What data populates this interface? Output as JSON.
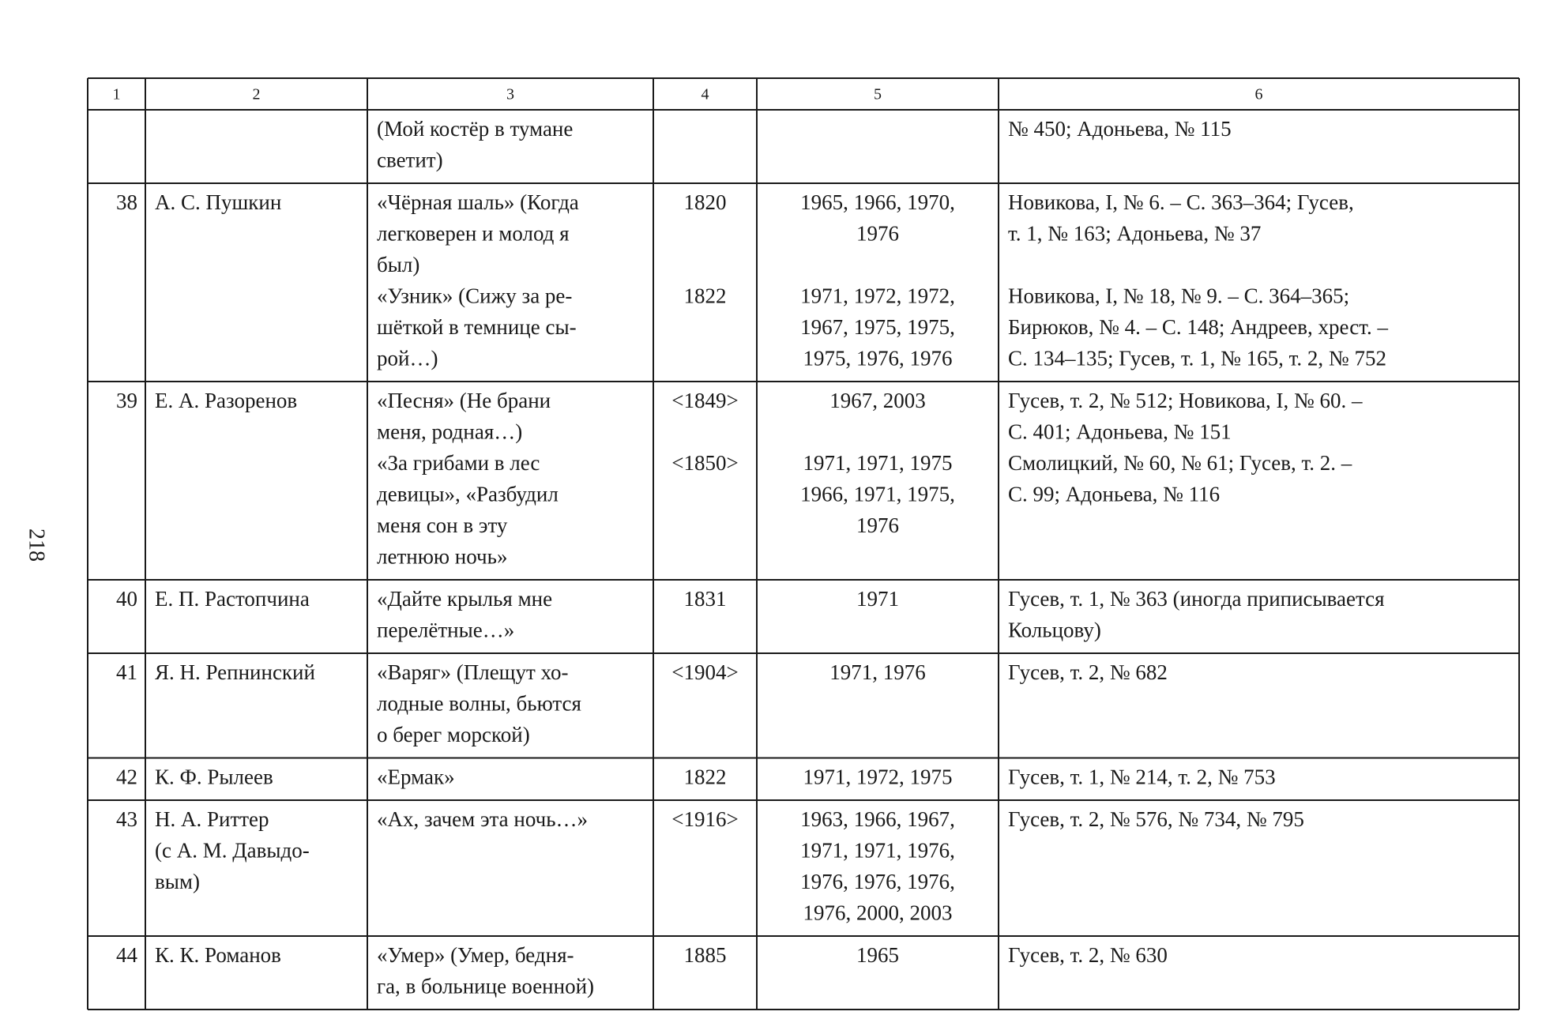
{
  "page_number": "218",
  "table": {
    "header": [
      "1",
      "2",
      "3",
      "4",
      "5",
      "6"
    ],
    "rows": [
      {
        "entries": [
          {
            "work": [
              "(Мой костёр в тумане",
              "светит)"
            ],
            "sources": [
              "№  450; Адоньева, № 115"
            ]
          }
        ]
      },
      {
        "num": "38",
        "author": [
          "А. С. Пушкин"
        ],
        "entries": [
          {
            "work": [
              "«Чёрная шаль» (Когда",
              "легковерен и молод я",
              "был)"
            ],
            "year": "1820",
            "editions": [
              "1965, 1966, 1970,",
              "1976"
            ],
            "sources": [
              "Новикова, I, № 6. – С. 363–364; Гусев,",
              "т.  1, № 163; Адоньева, № 37"
            ]
          },
          {
            "work": [
              "«Узник» (Сижу за ре-",
              "шёткой в темнице сы-",
              "рой…)"
            ],
            "year": "1822",
            "editions": [
              "1971, 1972, 1972,",
              "1967, 1975, 1975,",
              "1975, 1976, 1976"
            ],
            "sources": [
              "Новикова, I, № 18, № 9. – С. 364–365;",
              "Бирюков, № 4. – С. 148; Андреев, хрест. –",
              "С. 134–135; Гусев, т. 1, № 165, т. 2, № 752"
            ]
          }
        ]
      },
      {
        "num": "39",
        "author": [
          "Е. А. Разоренов"
        ],
        "entries": [
          {
            "work": [
              "«Песня» (Не брани",
              "меня, родная…)"
            ],
            "year": "<1849>",
            "editions": [
              "1967, 2003"
            ],
            "sources": [
              "Гусев, т. 2, № 512; Новикова, I, № 60. –",
              "С.  401; Адоньева, № 151"
            ]
          },
          {
            "work": [
              "«За грибами в лес",
              "девицы», «Разбудил",
              "меня сон в эту",
              "летнюю ночь»"
            ],
            "year": "<1850>",
            "editions": [
              "1971, 1971, 1975",
              "1966, 1971, 1975,",
              "1976"
            ],
            "sources": [
              "Смолицкий, № 60, № 61; Гусев, т. 2. –",
              "С.  99; Адоньева, № 116"
            ]
          }
        ]
      },
      {
        "num": "40",
        "author": [
          "Е. П. Растопчина"
        ],
        "entries": [
          {
            "work": [
              "«Дайте крылья мне",
              "перелётные…»"
            ],
            "year": "1831",
            "editions": [
              "1971"
            ],
            "sources": [
              "Гусев, т. 1, № 363 (иногда приписывается",
              "Кольцову)"
            ]
          }
        ]
      },
      {
        "num": "41",
        "author": [
          "Я. Н. Репнинский"
        ],
        "entries": [
          {
            "work": [
              "«Варяг» (Плещут хо-",
              "лодные волны, бьются",
              "о берег морской)"
            ],
            "year": "<1904>",
            "editions": [
              "1971, 1976"
            ],
            "sources": [
              "Гусев, т. 2, № 682"
            ]
          }
        ]
      },
      {
        "num": "42",
        "author": [
          "К. Ф. Рылеев"
        ],
        "entries": [
          {
            "work": [
              "«Ермак»"
            ],
            "year": "1822",
            "editions": [
              "1971, 1972, 1975"
            ],
            "sources": [
              "Гусев, т. 1, № 214, т. 2, № 753"
            ]
          }
        ]
      },
      {
        "num": "43",
        "author": [
          "Н. А. Риттер",
          "(с А. М. Давыдо-",
          "вым)"
        ],
        "entries": [
          {
            "work": [
              "«Ах, зачем эта ночь…»"
            ],
            "year": "<1916>",
            "editions": [
              "1963, 1966, 1967,",
              "1971, 1971, 1976,",
              "1976, 1976, 1976,",
              "1976, 2000, 2003"
            ],
            "sources": [
              "Гусев, т. 2, № 576, № 734, № 795"
            ]
          }
        ]
      },
      {
        "num": "44",
        "author": [
          "К. К. Романов"
        ],
        "entries": [
          {
            "work": [
              "«Умер» (Умер, бедня-",
              "га, в больнице военной)"
            ],
            "year": "1885",
            "editions": [
              "1965"
            ],
            "sources": [
              "Гусев, т. 2, № 630"
            ]
          }
        ]
      }
    ]
  }
}
